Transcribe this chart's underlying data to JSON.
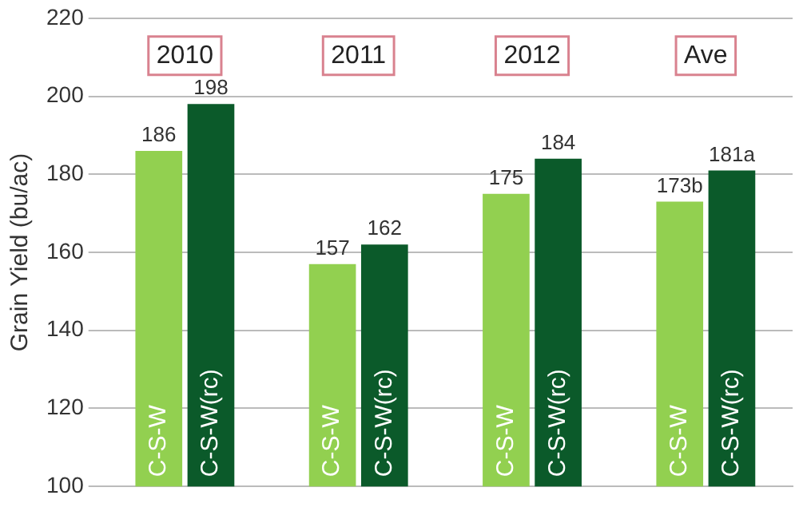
{
  "chart_data": {
    "type": "bar",
    "ylabel": "Grain Yield (bu/ac)",
    "categories": [
      "2010",
      "2011",
      "2012",
      "Ave"
    ],
    "series": [
      {
        "name": "C-S-W",
        "color": "#92d050",
        "values": [
          186,
          157,
          175,
          173
        ],
        "value_labels": [
          "186",
          "157",
          "175",
          "173b"
        ]
      },
      {
        "name": "C-S-W(rc)",
        "color": "#0b5a2a",
        "values": [
          198,
          162,
          184,
          181
        ],
        "value_labels": [
          "198",
          "162",
          "184",
          "181a"
        ]
      }
    ],
    "ylim": [
      100,
      220
    ],
    "yticks": [
      100,
      120,
      140,
      160,
      180,
      200,
      220
    ],
    "grid": "y"
  }
}
